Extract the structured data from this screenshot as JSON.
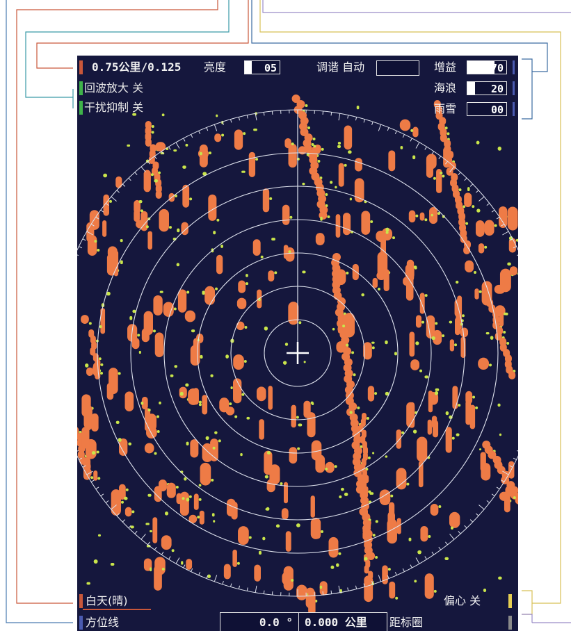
{
  "colors": {
    "range_accent": "#c9573a",
    "green_accent": "#3fb34a",
    "bearing_accent": "#4a5ab0",
    "offcenter_accent": "#e6cf52",
    "echo": "#ee7b46",
    "trail": "#c9e54b",
    "rings": "#dfe3ee",
    "screen_bg": "#15173d"
  },
  "top": {
    "range": "0.75公里/0.125",
    "brightness_label": "亮度",
    "brightness_value": "05",
    "brightness_level": 0.2,
    "tuning_label": "调谐 自动",
    "tuning_value": "",
    "gain_label": "增益",
    "gain_value": "70",
    "gain_level": 0.7,
    "sea_label": "海浪",
    "sea_value": "20",
    "sea_level": 0.2,
    "rain_label": "雨雪",
    "rain_value": "00",
    "rain_level": 0.0,
    "echo_stretch": "回波放大 关",
    "interference": "干扰抑制 关"
  },
  "bottom": {
    "palette": "白天(晴)",
    "off_center": "偏心 关",
    "ebl_label": "方位线",
    "ebl_value": "0.0 °",
    "vrm_value": "0.000 公里",
    "vrm_label": "距标圈"
  },
  "radar": {
    "ring_count": 6
  }
}
